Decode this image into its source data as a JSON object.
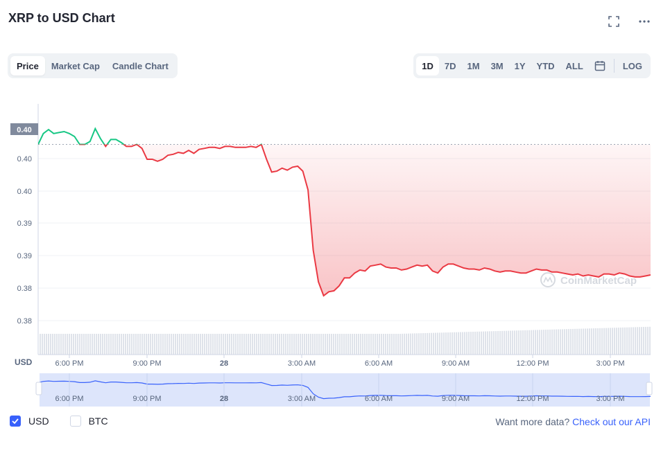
{
  "title": "XRP to USD Chart",
  "tabs": [
    "Price",
    "Market Cap",
    "Candle Chart"
  ],
  "ranges": [
    "1D",
    "7D",
    "1M",
    "3M",
    "1Y",
    "YTD",
    "ALL"
  ],
  "log_label": "LOG",
  "currency_label": "USD",
  "watermark": "CoinMarketCap",
  "legend": {
    "usd": "USD",
    "btc": "BTC"
  },
  "footer": {
    "text": "Want more data?",
    "link": "Check out our API"
  },
  "colors": {
    "up": "#16c784",
    "down": "#ea3943",
    "accent": "#3861fb",
    "navigator_fill": "#dde5fb",
    "volume": "#cfd6e4"
  },
  "chart_data": {
    "type": "area",
    "title": "XRP to USD Chart",
    "ylabel": "USD",
    "y_ticks": [
      "0.38",
      "0.38",
      "0.39",
      "0.39",
      "0.40",
      "0.40"
    ],
    "current_price_label": "0.40",
    "x_ticks": [
      "6:00 PM",
      "9:00 PM",
      "28",
      "3:00 AM",
      "6:00 AM",
      "9:00 AM",
      "12:00 PM",
      "3:00 PM"
    ],
    "x_range_hours": [
      -1.3,
      22.3
    ],
    "ylim": [
      0.3805,
      0.4055
    ],
    "baseline_price": 0.4,
    "series": [
      {
        "x": [
          -1.3,
          -1.1,
          -0.9,
          -0.7,
          -0.5,
          -0.3,
          -0.1,
          0.1,
          0.3,
          0.5,
          0.7,
          0.9,
          1.1,
          1.3,
          1.5,
          1.7,
          1.9,
          2.1,
          2.3,
          2.5,
          2.7,
          2.9,
          3.1,
          3.3,
          3.5,
          3.7,
          3.9,
          4.1,
          4.3,
          4.5,
          4.7,
          4.9,
          5.1,
          5.3,
          5.5,
          5.7,
          5.9,
          6.1,
          6.3,
          6.5,
          6.7,
          6.9,
          7.1,
          7.3,
          7.5,
          7.7,
          7.9,
          8.1,
          8.3,
          8.5,
          8.7,
          8.9,
          9.1,
          9.3,
          9.5,
          9.7,
          9.9,
          10.1,
          10.3,
          10.5,
          10.7,
          10.9,
          11.1,
          11.3,
          11.5,
          11.7,
          11.9,
          12.1,
          12.3,
          12.5,
          12.7,
          12.9,
          13.1,
          13.3,
          13.5,
          13.7,
          13.9,
          14.1,
          14.3,
          14.5,
          14.7,
          14.9,
          15.1,
          15.3,
          15.5,
          15.7,
          15.9,
          16.1,
          16.3,
          16.5,
          16.7,
          16.9,
          17.1,
          17.3,
          17.5,
          17.7,
          17.9,
          18.1,
          18.3,
          18.5,
          18.7,
          18.9,
          19.1,
          19.3,
          19.5,
          19.7,
          19.9,
          20.1,
          20.3,
          20.5,
          20.7,
          20.9,
          21.1,
          21.3,
          21.5,
          21.7,
          21.9,
          22.1,
          22.3
        ],
        "y": [
          0.4,
          0.4011,
          0.4015,
          0.4011,
          0.4012,
          0.4013,
          0.4011,
          0.4008,
          0.4,
          0.4,
          0.4003,
          0.4016,
          0.4006,
          0.3998,
          0.4005,
          0.4005,
          0.4002,
          0.3998,
          0.3998,
          0.4,
          0.3996,
          0.3985,
          0.3985,
          0.3983,
          0.3985,
          0.3989,
          0.399,
          0.3992,
          0.3991,
          0.3994,
          0.3991,
          0.3995,
          0.3996,
          0.3997,
          0.3997,
          0.3996,
          0.3998,
          0.3998,
          0.3997,
          0.3997,
          0.3997,
          0.3998,
          0.3997,
          0.4,
          0.3985,
          0.3972,
          0.3973,
          0.3976,
          0.3974,
          0.3977,
          0.3978,
          0.3973,
          0.3954,
          0.3893,
          0.3861,
          0.3847,
          0.3851,
          0.3852,
          0.3857,
          0.3865,
          0.3865,
          0.387,
          0.3873,
          0.3872,
          0.3877,
          0.3878,
          0.3879,
          0.3876,
          0.3875,
          0.3875,
          0.3873,
          0.3874,
          0.3876,
          0.3878,
          0.3877,
          0.3878,
          0.3872,
          0.387,
          0.3876,
          0.3879,
          0.3879,
          0.3877,
          0.3875,
          0.3874,
          0.3874,
          0.3873,
          0.3875,
          0.3874,
          0.3872,
          0.3871,
          0.3872,
          0.3872,
          0.3871,
          0.387,
          0.387,
          0.3872,
          0.3874,
          0.3873,
          0.3873,
          0.3871,
          0.3871,
          0.387,
          0.3869,
          0.3868,
          0.3869,
          0.3867,
          0.3868,
          0.3867,
          0.3866,
          0.3869,
          0.3869,
          0.3868,
          0.387,
          0.3869,
          0.3867,
          0.3866,
          0.3866,
          0.3867,
          0.3868
        ]
      }
    ]
  }
}
